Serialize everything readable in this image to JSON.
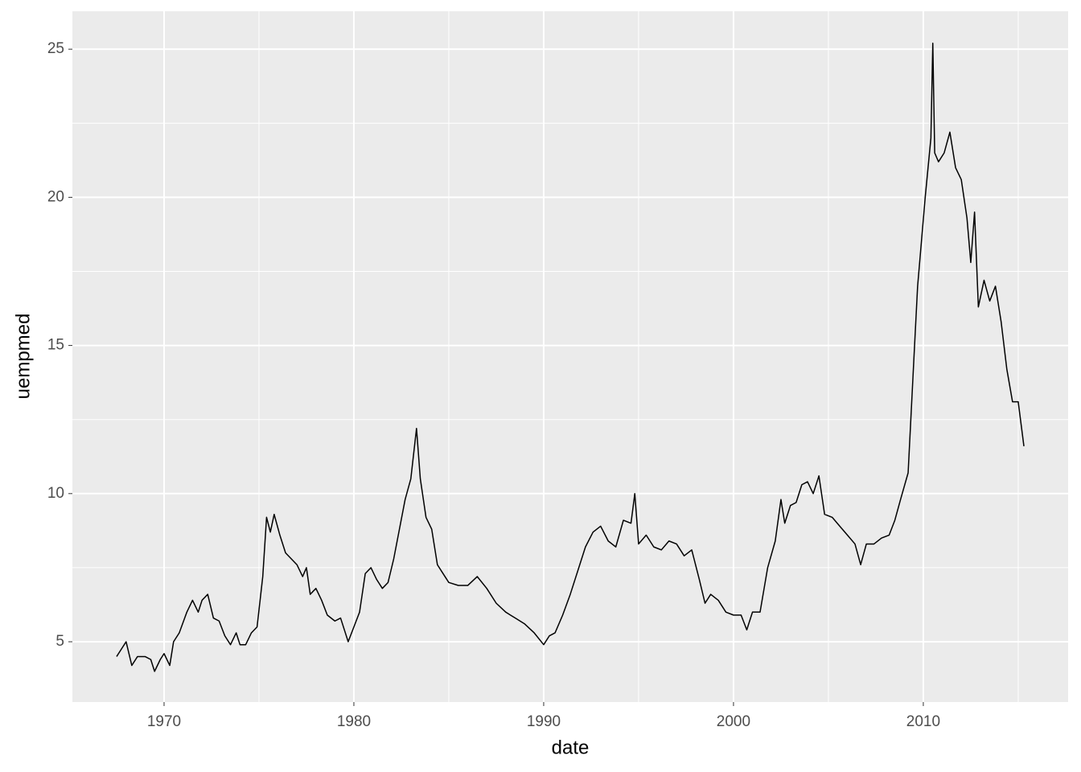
{
  "chart_data": {
    "type": "line",
    "x_label": "date",
    "y_label": "uempmed",
    "color": "#000000",
    "x": [
      1967.5,
      1967.8,
      1968.0,
      1968.3,
      1968.6,
      1969.0,
      1969.3,
      1969.5,
      1969.8,
      1970.0,
      1970.3,
      1970.5,
      1970.8,
      1971.2,
      1971.5,
      1971.8,
      1972.0,
      1972.3,
      1972.6,
      1972.9,
      1973.2,
      1973.5,
      1973.8,
      1974.0,
      1974.3,
      1974.6,
      1974.9,
      1975.2,
      1975.4,
      1975.6,
      1975.8,
      1976.1,
      1976.4,
      1976.7,
      1977.0,
      1977.3,
      1977.5,
      1977.7,
      1978.0,
      1978.3,
      1978.6,
      1979.0,
      1979.3,
      1979.7,
      1980.0,
      1980.3,
      1980.6,
      1980.9,
      1981.2,
      1981.5,
      1981.8,
      1982.1,
      1982.4,
      1982.7,
      1983.0,
      1983.3,
      1983.5,
      1983.8,
      1984.1,
      1984.4,
      1984.7,
      1985.0,
      1985.5,
      1986.0,
      1986.5,
      1987.0,
      1987.5,
      1988.0,
      1988.5,
      1989.0,
      1989.5,
      1990.0,
      1990.3,
      1990.6,
      1991.0,
      1991.4,
      1991.8,
      1992.2,
      1992.6,
      1993.0,
      1993.4,
      1993.8,
      1994.2,
      1994.6,
      1994.8,
      1995.0,
      1995.4,
      1995.8,
      1996.2,
      1996.6,
      1997.0,
      1997.4,
      1997.8,
      1998.2,
      1998.5,
      1998.8,
      1999.2,
      1999.6,
      2000.0,
      2000.4,
      2000.7,
      2001.0,
      2001.4,
      2001.8,
      2002.2,
      2002.5,
      2002.7,
      2003.0,
      2003.3,
      2003.6,
      2003.9,
      2004.2,
      2004.5,
      2004.8,
      2005.2,
      2005.6,
      2006.0,
      2006.4,
      2006.7,
      2007.0,
      2007.4,
      2007.8,
      2008.2,
      2008.5,
      2008.8,
      2009.2,
      2009.5,
      2009.7,
      2009.9,
      2010.1,
      2010.4,
      2010.5,
      2010.6,
      2010.8,
      2011.1,
      2011.4,
      2011.7,
      2012.0,
      2012.3,
      2012.5,
      2012.7,
      2012.9,
      2013.2,
      2013.5,
      2013.8,
      2014.1,
      2014.4,
      2014.7,
      2015.0,
      2015.3
    ],
    "values": [
      4.5,
      4.8,
      5.0,
      4.2,
      4.5,
      4.5,
      4.4,
      4.0,
      4.4,
      4.6,
      4.2,
      5.0,
      5.3,
      6.0,
      6.4,
      6.0,
      6.4,
      6.6,
      5.8,
      5.7,
      5.2,
      4.9,
      5.3,
      4.9,
      4.9,
      5.3,
      5.5,
      7.2,
      9.2,
      8.7,
      9.3,
      8.6,
      8.0,
      7.8,
      7.6,
      7.2,
      7.5,
      6.6,
      6.8,
      6.4,
      5.9,
      5.7,
      5.8,
      5.0,
      5.5,
      6.0,
      7.3,
      7.5,
      7.1,
      6.8,
      7.0,
      7.8,
      8.8,
      9.8,
      10.5,
      12.2,
      10.5,
      9.2,
      8.8,
      7.6,
      7.3,
      7.0,
      6.9,
      6.9,
      7.2,
      6.8,
      6.3,
      6.0,
      5.8,
      5.6,
      5.3,
      4.9,
      5.2,
      5.3,
      5.9,
      6.6,
      7.4,
      8.2,
      8.7,
      8.9,
      8.4,
      8.2,
      9.1,
      9.0,
      10.0,
      8.3,
      8.6,
      8.2,
      8.1,
      8.4,
      8.3,
      7.9,
      8.1,
      7.1,
      6.3,
      6.6,
      6.4,
      6.0,
      5.9,
      5.9,
      5.4,
      6.0,
      6.0,
      7.5,
      8.4,
      9.8,
      9.0,
      9.6,
      9.7,
      10.3,
      10.4,
      10.0,
      10.6,
      9.3,
      9.2,
      8.9,
      8.6,
      8.3,
      7.6,
      8.3,
      8.3,
      8.5,
      8.6,
      9.1,
      9.8,
      10.7,
      14.5,
      17.0,
      18.5,
      20.0,
      22.0,
      25.2,
      21.5,
      21.2,
      21.5,
      22.2,
      21.0,
      20.6,
      19.3,
      17.8,
      19.5,
      16.3,
      17.2,
      16.5,
      17.0,
      15.8,
      14.2,
      13.1,
      13.1,
      11.6
    ],
    "xlim": [
      1965.17,
      2017.63
    ],
    "xticks": [
      1970,
      1980,
      1990,
      2000,
      2010
    ],
    "x_minor_ticks": [
      1965,
      1975,
      1985,
      1995,
      2005,
      2015
    ],
    "ylim": [
      2.965,
      26.28
    ],
    "yticks": [
      5,
      10,
      15,
      20,
      25
    ],
    "y_minor_ticks": [
      7.5,
      12.5,
      17.5,
      22.5
    ],
    "grid": true
  }
}
